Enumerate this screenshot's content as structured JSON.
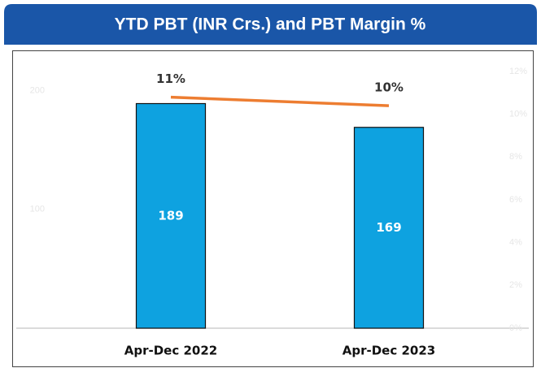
{
  "chart_data": {
    "type": "bar",
    "title": "YTD PBT (INR Crs.) and PBT Margin %",
    "categories": [
      "Apr-Dec 2022",
      "Apr-Dec 2023"
    ],
    "series": [
      {
        "type": "bar",
        "color": "#0ea2e0",
        "values": [
          189,
          169
        ]
      },
      {
        "type": "line",
        "color": "#ed7d31",
        "axis": "y2",
        "values": [
          10.8,
          10.4
        ],
        "value_labels": [
          "11%",
          "10%"
        ]
      }
    ],
    "ylim": [
      0,
      216
    ],
    "yticks": [
      100,
      200
    ],
    "y2lim": [
      0,
      12
    ],
    "y2ticks": [
      {
        "value": 0,
        "label": "0%"
      },
      {
        "value": 2,
        "label": "2%"
      },
      {
        "value": 4,
        "label": "4%"
      },
      {
        "value": 6,
        "label": "6%"
      },
      {
        "value": 8,
        "label": "8%"
      },
      {
        "value": 10,
        "label": "10%"
      },
      {
        "value": 12,
        "label": "12%"
      }
    ]
  }
}
